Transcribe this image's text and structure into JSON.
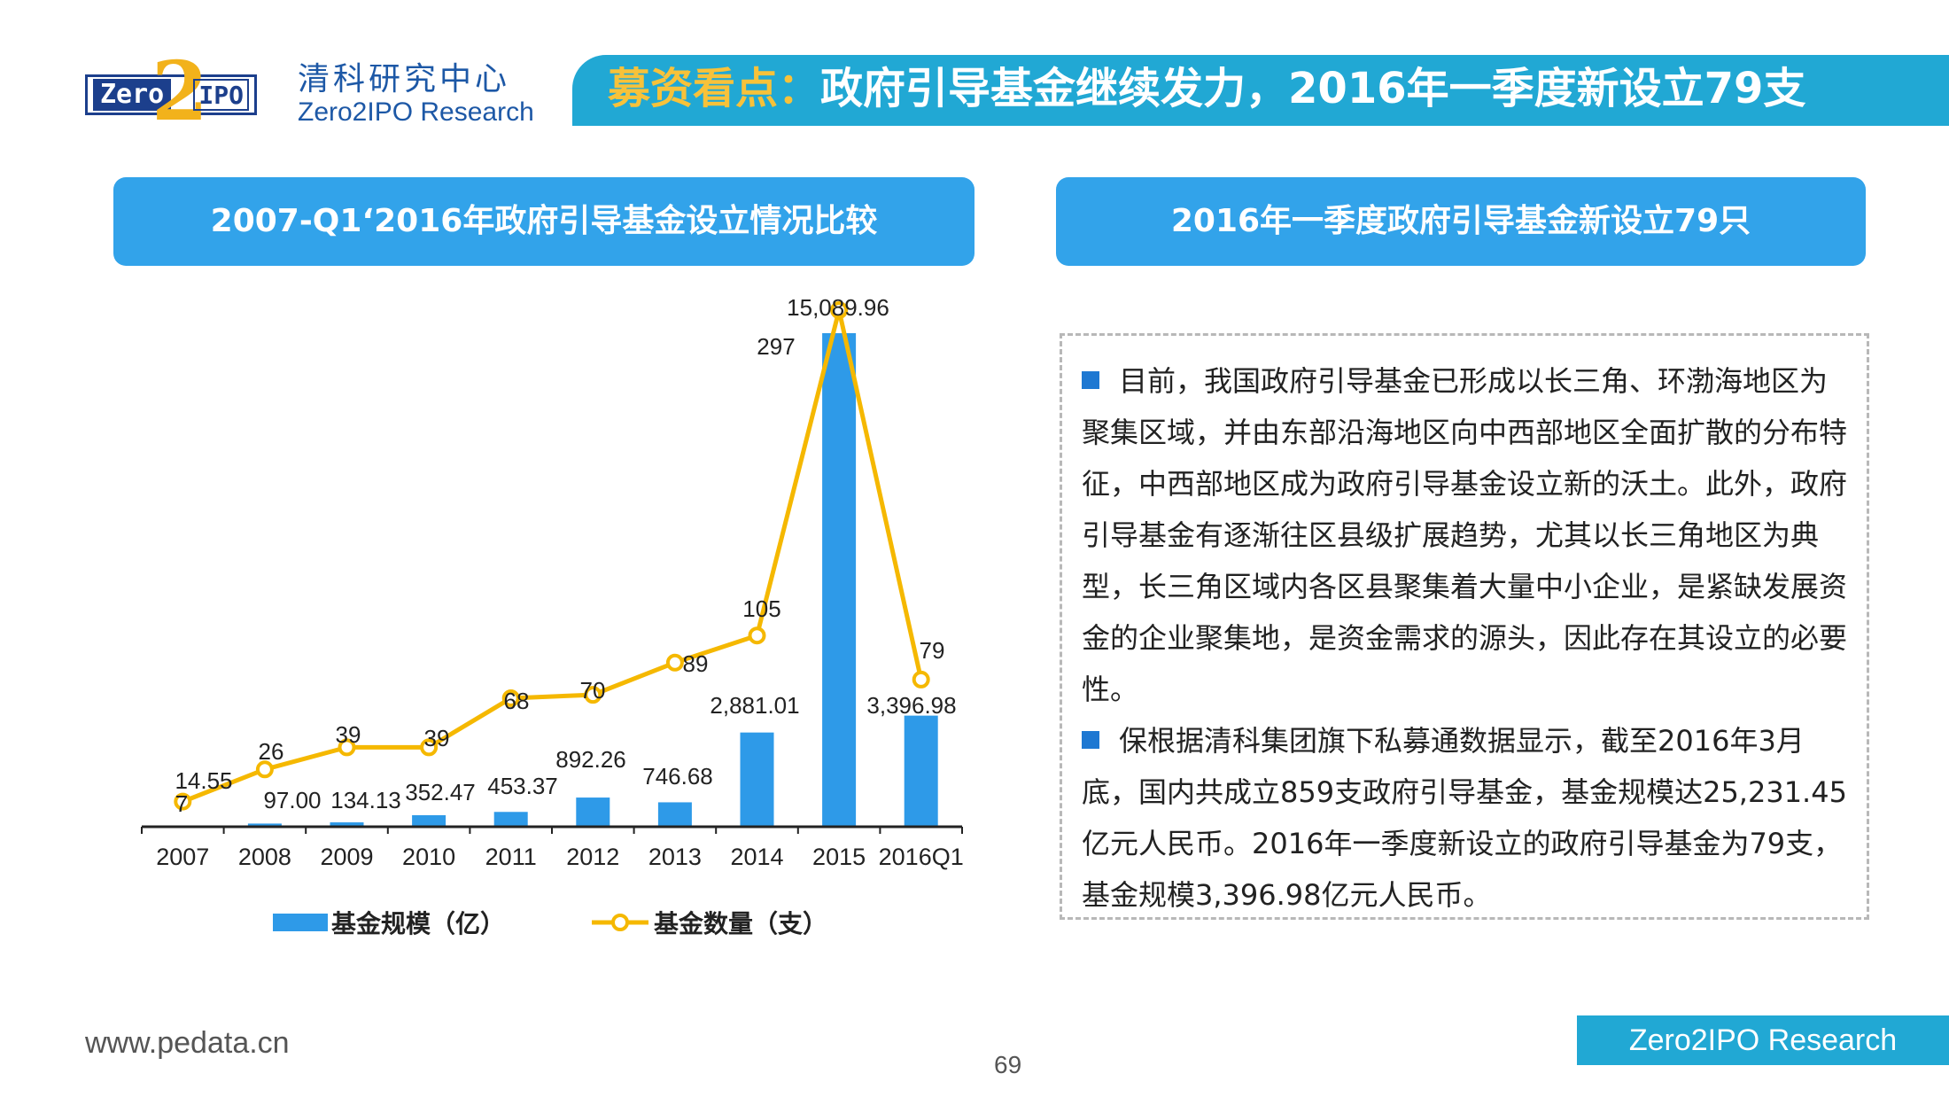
{
  "header": {
    "logo_zero": "Zero",
    "logo_two": "2",
    "logo_ipo": "IPO",
    "brand_cn": "清科研究中心",
    "brand_en": "Zero2IPO Research",
    "headline_accent": "募资看点：",
    "headline_main": "政府引导基金继续发力，2016年一季度新设立79支"
  },
  "left_panel": {
    "title": "2007-Q1‘2016年政府引导基金设立情况比较"
  },
  "right_panel": {
    "title": "2016年一季度政府引导基金新设立79只",
    "paragraphs": [
      "目前，我国政府引导基金已形成以长三角、环渤海地区为聚集区域，并由东部沿海地区向中西部地区全面扩散的分布特征，中西部地区成为政府引导基金设立新的沃土。此外，政府引导基金有逐渐往区县级扩展趋势，尤其以长三角地区为典型，长三角区域内各区县聚集着大量中小企业，是紧缺发展资金的企业聚集地，是资金需求的源头，因此存在其设立的必要性。",
      "保根据清科集团旗下私募通数据显示，截至2016年3月底，国内共成立859支政府引导基金，基金规模达25,231.45亿元人民币。2016年一季度新设立的政府引导基金为79支，基金规模3,396.98亿元人民币。"
    ]
  },
  "chart_data": {
    "type": "bar",
    "title": "2007-Q1‘2016年政府引导基金设立情况比较",
    "categories": [
      "2007",
      "2008",
      "2009",
      "2010",
      "2011",
      "2012",
      "2013",
      "2014",
      "2015",
      "2016Q1"
    ],
    "series": [
      {
        "name": "基金规模（亿）",
        "type": "bar",
        "color": "#2e9ae8",
        "values": [
          14.55,
          97.0,
          134.13,
          352.47,
          453.37,
          892.26,
          746.68,
          2881.01,
          15089.96,
          3396.98
        ],
        "labels": [
          "14.55",
          "97.00",
          "134.13",
          "352.47",
          "453.37",
          "892.26",
          "746.68",
          "2,881.01",
          "15,089.96",
          "3,396.98"
        ]
      },
      {
        "name": "基金数量（支）",
        "type": "line",
        "color": "#f5b800",
        "values": [
          7,
          26,
          39,
          39,
          68,
          70,
          89,
          105,
          297,
          79
        ],
        "labels": [
          "7",
          "26",
          "39",
          "39",
          "68",
          "70",
          "89",
          "105",
          "297",
          "79"
        ]
      }
    ],
    "legend": "bottom",
    "grid": false
  },
  "footer": {
    "url": "www.pedata.cn",
    "page_number": "69",
    "badge": "Zero2IPO Research"
  }
}
